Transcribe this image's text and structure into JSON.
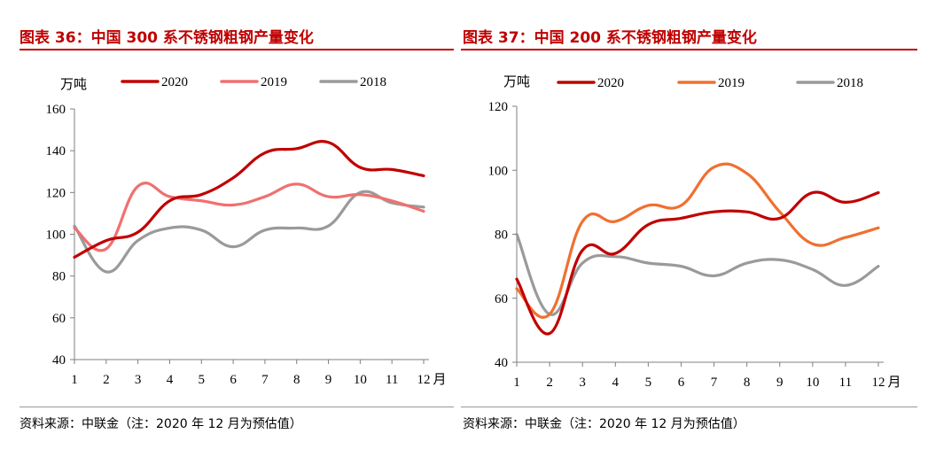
{
  "panels": [
    {
      "title": "图表 36：中国 300 系不锈钢粗钢产量变化",
      "source": "资料来源：中联金（注：2020 年 12 月为预估值）",
      "chart_data": {
        "type": "line",
        "unit_label": "万吨",
        "x_unit": "月",
        "x": [
          1,
          2,
          3,
          4,
          5,
          6,
          7,
          8,
          9,
          10,
          11,
          12
        ],
        "ylim": [
          40,
          160
        ],
        "yticks": [
          40,
          60,
          80,
          100,
          120,
          140,
          160
        ],
        "legend_position": "top",
        "series": [
          {
            "name": "2020",
            "color": "#c00000",
            "values": [
              89,
              97,
              101,
              116,
              119,
              127,
              139,
              141,
              144,
              132,
              131,
              128
            ]
          },
          {
            "name": "2019",
            "color": "#f07070",
            "values": [
              103,
              93,
              123,
              118,
              116,
              114,
              118,
              124,
              118,
              119,
              116,
              111
            ]
          },
          {
            "name": "2018",
            "color": "#9a9a9a",
            "values": [
              104,
              82,
              97,
              103,
              102,
              94,
              102,
              103,
              104,
              120,
              115,
              113
            ]
          }
        ]
      }
    },
    {
      "title": "图表 37：中国 200 系不锈钢粗钢产量变化",
      "source": "资料来源：中联金（注：2020 年 12 月为预估值）",
      "chart_data": {
        "type": "line",
        "unit_label": "万吨",
        "x_unit": "月",
        "x": [
          1,
          2,
          3,
          4,
          5,
          6,
          7,
          8,
          9,
          10,
          11,
          12
        ],
        "ylim": [
          40,
          120
        ],
        "yticks": [
          40,
          60,
          80,
          100,
          120
        ],
        "legend_position": "top",
        "series": [
          {
            "name": "2020",
            "color": "#c00000",
            "values": [
              66,
              49,
              75,
              74,
              83,
              85,
              87,
              87,
              85,
              93,
              90,
              93
            ]
          },
          {
            "name": "2019",
            "color": "#f07030",
            "values": [
              63,
              55,
              84,
              84,
              89,
              89,
              101,
              99,
              87,
              77,
              79,
              82
            ]
          },
          {
            "name": "2018",
            "color": "#9a9a9a",
            "values": [
              80,
              55,
              71,
              73,
              71,
              70,
              67,
              71,
              72,
              69,
              64,
              70
            ]
          }
        ]
      }
    }
  ]
}
